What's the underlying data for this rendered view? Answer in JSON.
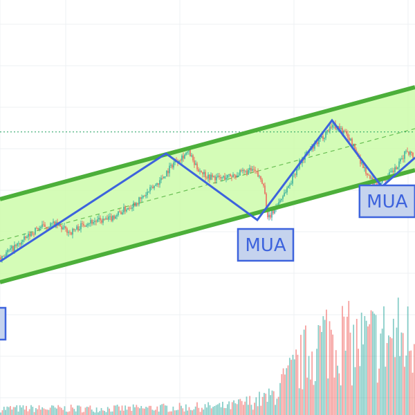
{
  "chart_data": {
    "type": "candlestick-with-volume",
    "title": "",
    "xlabel": "",
    "ylabel": "",
    "grid": true,
    "x_range": [
      0,
      100
    ],
    "price_range": [
      0,
      100
    ],
    "volume_range": [
      0,
      100
    ],
    "colors": {
      "up": "#26a69a",
      "down": "#ef5350",
      "channel_fill": "#ccfbaa",
      "channel_border": "#4caf3a",
      "zigzag": "#3d63dd",
      "label_fill": "#c5d3ee",
      "label_border": "#3d63dd",
      "label_text": "#3d63dd",
      "resistance": "#1a9e5a"
    },
    "channel": {
      "upper": [
        [
          0,
          52
        ],
        [
          100,
          79
        ]
      ],
      "lower": [
        [
          0,
          32
        ],
        [
          100,
          59
        ]
      ],
      "midline": [
        [
          0,
          42
        ],
        [
          100,
          69
        ]
      ]
    },
    "horizontal_level": 68.2,
    "zigzag": [
      [
        0,
        37
      ],
      [
        40,
        63
      ],
      [
        62,
        47
      ],
      [
        80,
        71
      ],
      [
        92,
        55
      ],
      [
        100,
        62
      ]
    ],
    "annotations": [
      {
        "text": "MUA",
        "x": 64,
        "y": 41
      },
      {
        "text": "MUA",
        "x": 93.3,
        "y": 51.5
      },
      {
        "text": "",
        "x": -2,
        "y": 22
      }
    ],
    "price_path": [
      [
        0,
        38
      ],
      [
        5,
        41.5
      ],
      [
        9,
        45
      ],
      [
        13,
        46
      ],
      [
        17,
        44
      ],
      [
        21,
        46.5
      ],
      [
        26,
        47
      ],
      [
        30,
        49.5
      ],
      [
        34,
        52
      ],
      [
        39,
        57
      ],
      [
        42,
        61
      ],
      [
        45.5,
        63.5
      ],
      [
        47,
        60
      ],
      [
        50,
        57.5
      ],
      [
        53,
        57
      ],
      [
        57,
        58
      ],
      [
        61,
        59
      ],
      [
        63.5,
        56
      ],
      [
        64.5,
        47
      ],
      [
        67,
        51
      ],
      [
        70,
        56
      ],
      [
        72,
        60.5
      ],
      [
        74,
        63
      ],
      [
        77,
        66
      ],
      [
        80,
        70
      ],
      [
        82,
        69
      ],
      [
        84,
        67
      ],
      [
        87,
        61
      ],
      [
        89,
        57
      ],
      [
        90.5,
        55.5
      ],
      [
        93,
        57
      ],
      [
        96,
        60
      ],
      [
        98,
        64
      ],
      [
        100,
        62
      ]
    ],
    "volume_envelope": [
      [
        0,
        3
      ],
      [
        30,
        3
      ],
      [
        55,
        4
      ],
      [
        65,
        8
      ],
      [
        70,
        18
      ],
      [
        75,
        30
      ],
      [
        80,
        38
      ],
      [
        85,
        32
      ],
      [
        90,
        34
      ],
      [
        95,
        36
      ],
      [
        100,
        34
      ]
    ]
  }
}
